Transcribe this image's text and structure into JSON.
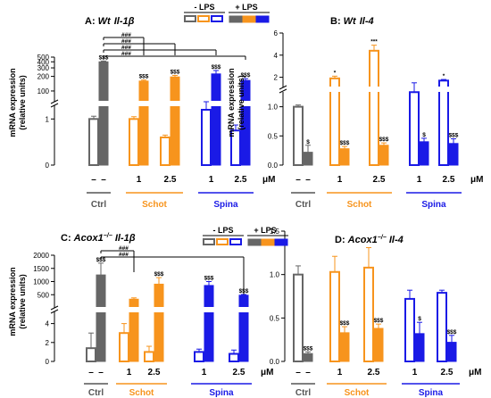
{
  "colors": {
    "ctrl": "#666666",
    "schot": "#F7941D",
    "spina": "#1A1AE6",
    "ctrl_label": "#555555"
  },
  "legend": {
    "minus_lps": "- LPS",
    "plus_lps": "+ LPS"
  },
  "chart_data": [
    {
      "id": "A",
      "type": "bar",
      "title": "A: Wt Il-1β",
      "title_prefix": "A: ",
      "title_genotype": "Wt",
      "title_gene": "Il-1β",
      "ylabel": [
        "mRNA expression",
        "(relative units)"
      ],
      "axis_scale": "broken",
      "y_lower_ticks": [
        "0",
        "1"
      ],
      "y_upper_ticks": [
        "100",
        "200",
        "300",
        "400",
        "500"
      ],
      "groups": [
        "Ctrl",
        "Schot",
        "Spina"
      ],
      "doses": [
        "–",
        "–",
        "1",
        "2.5",
        "1",
        "2.5"
      ],
      "dose_unit": "μM",
      "bars": [
        {
          "group": "Ctrl",
          "dose": "–",
          "lps": "-",
          "value": 1.0,
          "error": 0.06,
          "mark": ""
        },
        {
          "group": "Ctrl",
          "dose": "–",
          "lps": "+",
          "value": 400,
          "error": 15,
          "mark": "$$$"
        },
        {
          "group": "Schot",
          "dose": "1",
          "lps": "-",
          "value": 1.0,
          "error": 0.05,
          "mark": ""
        },
        {
          "group": "Schot",
          "dose": "1",
          "lps": "+",
          "value": 160,
          "error": 8,
          "mark": "$$$"
        },
        {
          "group": "Schot",
          "dose": "2.5",
          "lps": "-",
          "value": 0.6,
          "error": 0.05,
          "mark": ""
        },
        {
          "group": "Schot",
          "dose": "2.5",
          "lps": "+",
          "value": 195,
          "error": 15,
          "mark": "$$$"
        },
        {
          "group": "Spina",
          "dose": "1",
          "lps": "-",
          "value": 1.2,
          "error": 0.12,
          "mark": ""
        },
        {
          "group": "Spina",
          "dose": "1",
          "lps": "+",
          "value": 225,
          "error": 40,
          "mark": "$$$"
        },
        {
          "group": "Spina",
          "dose": "2.5",
          "lps": "-",
          "value": 0.75,
          "error": 0.12,
          "mark": ""
        },
        {
          "group": "Spina",
          "dose": "2.5",
          "lps": "+",
          "value": 165,
          "error": 15,
          "mark": "$$$"
        }
      ],
      "comparisons": [
        "###",
        "###",
        "###",
        "###"
      ]
    },
    {
      "id": "B",
      "type": "bar",
      "title": "B: Wt Il-4",
      "title_prefix": "B: ",
      "title_genotype": "Wt",
      "title_gene": "Il-4",
      "ylabel": [
        "mRNA expression",
        "(relative units)"
      ],
      "axis_scale": "broken",
      "y_lower_ticks": [
        "0.0",
        "0.5",
        "1.0"
      ],
      "y_upper_ticks": [
        "2",
        "4",
        "6"
      ],
      "groups": [
        "Ctrl",
        "Schot",
        "Spina"
      ],
      "doses": [
        "–",
        "–",
        "1",
        "2.5",
        "1",
        "2.5"
      ],
      "dose_unit": "μM",
      "bars": [
        {
          "group": "Ctrl",
          "dose": "–",
          "lps": "-",
          "value": 1.0,
          "error": 0.03,
          "mark": ""
        },
        {
          "group": "Ctrl",
          "dose": "–",
          "lps": "+",
          "value": 0.22,
          "error": 0.12,
          "mark": "$"
        },
        {
          "group": "Schot",
          "dose": "1",
          "lps": "-",
          "value": 1.9,
          "error": 0.2,
          "mark": "*"
        },
        {
          "group": "Schot",
          "dose": "1",
          "lps": "+",
          "value": 0.28,
          "error": 0.04,
          "mark": "$$$"
        },
        {
          "group": "Schot",
          "dose": "2.5",
          "lps": "-",
          "value": 4.4,
          "error": 0.5,
          "mark": "***"
        },
        {
          "group": "Schot",
          "dose": "2.5",
          "lps": "+",
          "value": 0.34,
          "error": 0.04,
          "mark": "$$$"
        },
        {
          "group": "Spina",
          "dose": "1",
          "lps": "-",
          "value": 1.25,
          "error": 0.25,
          "mark": ""
        },
        {
          "group": "Spina",
          "dose": "1",
          "lps": "+",
          "value": 0.4,
          "error": 0.06,
          "mark": "$"
        },
        {
          "group": "Spina",
          "dose": "2.5",
          "lps": "-",
          "value": 1.7,
          "error": 0.1,
          "mark": "*"
        },
        {
          "group": "Spina",
          "dose": "2.5",
          "lps": "+",
          "value": 0.37,
          "error": 0.08,
          "mark": "$$$"
        }
      ]
    },
    {
      "id": "C",
      "type": "bar",
      "title": "C: Acox1−/− Il-1β",
      "title_prefix": "C: ",
      "title_genotype": "Acox1",
      "title_sup": "−/−",
      "title_gene": "Il-1β",
      "ylabel": [
        "mRNA expression",
        "(relative units)"
      ],
      "axis_scale": "broken",
      "y_lower_ticks": [
        "0",
        "2",
        "4"
      ],
      "y_upper_ticks": [
        "500",
        "1000",
        "1500",
        "2000"
      ],
      "groups": [
        "Ctrl",
        "Schot",
        "Spina"
      ],
      "doses": [
        "–",
        "–",
        "1",
        "2.5",
        "1",
        "2.5"
      ],
      "dose_unit": "μM",
      "bars": [
        {
          "group": "Ctrl",
          "dose": "–",
          "lps": "-",
          "value": 1.4,
          "error": 1.6,
          "mark": ""
        },
        {
          "group": "Ctrl",
          "dose": "–",
          "lps": "+",
          "value": 1250,
          "error": 450,
          "mark": "$$$"
        },
        {
          "group": "Schot",
          "dose": "1",
          "lps": "-",
          "value": 3.0,
          "error": 1.0,
          "mark": ""
        },
        {
          "group": "Schot",
          "dose": "1",
          "lps": "+",
          "value": 330,
          "error": 50,
          "mark": ""
        },
        {
          "group": "Schot",
          "dose": "2.5",
          "lps": "-",
          "value": 1.0,
          "error": 0.6,
          "mark": ""
        },
        {
          "group": "Schot",
          "dose": "2.5",
          "lps": "+",
          "value": 900,
          "error": 250,
          "mark": "$$$"
        },
        {
          "group": "Spina",
          "dose": "1",
          "lps": "-",
          "value": 1.0,
          "error": 0.3,
          "mark": ""
        },
        {
          "group": "Spina",
          "dose": "1",
          "lps": "+",
          "value": 850,
          "error": 150,
          "mark": "$$$"
        },
        {
          "group": "Spina",
          "dose": "2.5",
          "lps": "-",
          "value": 0.8,
          "error": 0.4,
          "mark": ""
        },
        {
          "group": "Spina",
          "dose": "2.5",
          "lps": "+",
          "value": 480,
          "error": 30,
          "mark": "$$$"
        }
      ],
      "comparisons": [
        "###",
        "###"
      ]
    },
    {
      "id": "D",
      "type": "bar",
      "title": "D: Acox1−/− Il-4",
      "title_prefix": "D: ",
      "title_genotype": "Acox1",
      "title_sup": "−/−",
      "title_gene": "Il-4",
      "ylabel": [],
      "axis_scale": "linear",
      "ylim": [
        0,
        1.5
      ],
      "y_ticks": [
        "0.0",
        "0.5",
        "1.0",
        "1.5"
      ],
      "groups": [
        "Ctrl",
        "Schot",
        "Spina"
      ],
      "doses": [
        "–",
        "–",
        "1",
        "2.5",
        "1",
        "2.5"
      ],
      "dose_unit": "μM",
      "bars": [
        {
          "group": "Ctrl",
          "dose": "–",
          "lps": "-",
          "value": 1.0,
          "error": 0.1,
          "mark": ""
        },
        {
          "group": "Ctrl",
          "dose": "–",
          "lps": "+",
          "value": 0.09,
          "error": 0.02,
          "mark": "$$$"
        },
        {
          "group": "Schot",
          "dose": "1",
          "lps": "-",
          "value": 1.03,
          "error": 0.18,
          "mark": ""
        },
        {
          "group": "Schot",
          "dose": "1",
          "lps": "+",
          "value": 0.33,
          "error": 0.07,
          "mark": "$$$"
        },
        {
          "group": "Schot",
          "dose": "2.5",
          "lps": "-",
          "value": 1.08,
          "error": 0.23,
          "mark": ""
        },
        {
          "group": "Schot",
          "dose": "2.5",
          "lps": "+",
          "value": 0.38,
          "error": 0.05,
          "mark": "$$$"
        },
        {
          "group": "Spina",
          "dose": "1",
          "lps": "-",
          "value": 0.72,
          "error": 0.1,
          "mark": ""
        },
        {
          "group": "Spina",
          "dose": "1",
          "lps": "+",
          "value": 0.32,
          "error": 0.13,
          "mark": "$"
        },
        {
          "group": "Spina",
          "dose": "2.5",
          "lps": "-",
          "value": 0.79,
          "error": 0.03,
          "mark": ""
        },
        {
          "group": "Spina",
          "dose": "2.5",
          "lps": "+",
          "value": 0.22,
          "error": 0.08,
          "mark": "$$$"
        }
      ]
    }
  ]
}
